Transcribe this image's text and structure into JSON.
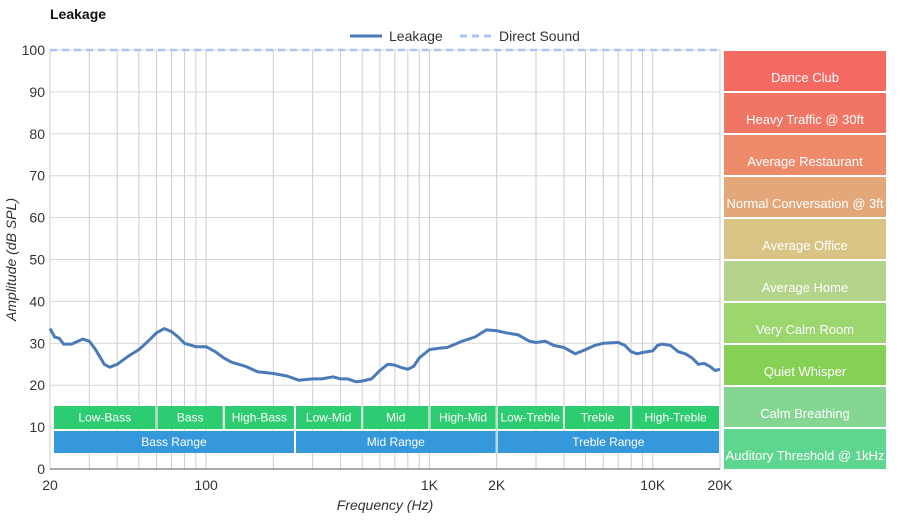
{
  "chart_data": {
    "type": "line",
    "title": "Leakage",
    "xlabel": "Frequency (Hz)",
    "ylabel": "Amplitude (dB SPL)",
    "x_scale": "log",
    "xlim": [
      20,
      20000
    ],
    "ylim": [
      0,
      100
    ],
    "grid": true,
    "legend_position": "top-center",
    "x_tick_labels": [
      {
        "value": 20,
        "label": "20"
      },
      {
        "value": 100,
        "label": "100"
      },
      {
        "value": 1000,
        "label": "1K"
      },
      {
        "value": 2000,
        "label": "2K"
      },
      {
        "value": 10000,
        "label": "10K"
      },
      {
        "value": 20000,
        "label": "20K"
      }
    ],
    "y_ticks": [
      0,
      10,
      20,
      30,
      40,
      50,
      60,
      70,
      80,
      90,
      100
    ],
    "series": [
      {
        "name": "Leakage",
        "color": "#4a7ab8",
        "style": "solid",
        "x": [
          20,
          21,
          22,
          23,
          25,
          28,
          30,
          32,
          35,
          37,
          40,
          45,
          50,
          55,
          60,
          65,
          70,
          75,
          80,
          90,
          100,
          110,
          120,
          130,
          150,
          170,
          200,
          230,
          260,
          300,
          330,
          370,
          400,
          430,
          470,
          500,
          550,
          600,
          650,
          700,
          750,
          800,
          850,
          900,
          1000,
          1100,
          1200,
          1400,
          1600,
          1800,
          2000,
          2200,
          2500,
          2800,
          3000,
          3300,
          3600,
          4000,
          4500,
          5000,
          5500,
          6000,
          7000,
          7500,
          8000,
          8500,
          9000,
          10000,
          10500,
          11000,
          12000,
          13000,
          14000,
          15000,
          16000,
          17000,
          18000,
          19000,
          20000
        ],
        "values": [
          33.5,
          31.5,
          31.2,
          29.8,
          29.8,
          31.0,
          30.5,
          28.5,
          25.0,
          24.3,
          25.0,
          27.0,
          28.5,
          30.5,
          32.5,
          33.5,
          32.8,
          31.5,
          30.0,
          29.2,
          29.2,
          28.0,
          26.5,
          25.5,
          24.5,
          23.2,
          22.8,
          22.2,
          21.2,
          21.5,
          21.5,
          22.0,
          21.5,
          21.5,
          20.8,
          21.0,
          21.5,
          23.5,
          25.0,
          24.8,
          24.2,
          23.8,
          24.5,
          26.5,
          28.5,
          28.8,
          29.0,
          30.5,
          31.5,
          33.2,
          33.0,
          32.5,
          32.0,
          30.5,
          30.2,
          30.5,
          29.5,
          29.0,
          27.5,
          28.5,
          29.5,
          30.0,
          30.2,
          29.5,
          28.0,
          27.5,
          27.8,
          28.2,
          29.5,
          29.8,
          29.5,
          28.0,
          27.5,
          26.5,
          25.0,
          25.2,
          24.5,
          23.5,
          23.8
        ]
      },
      {
        "name": "Direct Sound",
        "color": "#a9c4f5",
        "style": "dashed",
        "x": [
          20,
          20000
        ],
        "values": [
          100,
          100
        ]
      }
    ],
    "frequency_bands": [
      {
        "label": "Low-Bass",
        "from": 20,
        "to": 60,
        "row": 1
      },
      {
        "label": "Bass",
        "from": 60,
        "to": 120,
        "row": 1
      },
      {
        "label": "High-Bass",
        "from": 120,
        "to": 250,
        "row": 1
      },
      {
        "label": "Low-Mid",
        "from": 250,
        "to": 500,
        "row": 1
      },
      {
        "label": "Mid",
        "from": 500,
        "to": 1000,
        "row": 1
      },
      {
        "label": "High-Mid",
        "from": 1000,
        "to": 2000,
        "row": 1
      },
      {
        "label": "Low-Treble",
        "from": 2000,
        "to": 4000,
        "row": 1
      },
      {
        "label": "Treble",
        "from": 4000,
        "to": 8000,
        "row": 1
      },
      {
        "label": "High-Treble",
        "from": 8000,
        "to": 20000,
        "row": 1
      },
      {
        "label": "Bass Range",
        "from": 20,
        "to": 250,
        "row": 2
      },
      {
        "label": "Mid Range",
        "from": 250,
        "to": 2000,
        "row": 2
      },
      {
        "label": "Treble Range",
        "from": 2000,
        "to": 20000,
        "row": 2
      }
    ],
    "band_colors": {
      "row1": "#2ecc71",
      "row2": "#3498db"
    },
    "reference_levels": [
      {
        "label": "Dance Club",
        "color": "#f46a62"
      },
      {
        "label": "Heavy Traffic @ 30ft",
        "color": "#f07565"
      },
      {
        "label": "Average Restaurant",
        "color": "#ec8a6a"
      },
      {
        "label": "Normal Conversation @ 3ft",
        "color": "#e4a77a"
      },
      {
        "label": "Average Office",
        "color": "#d9c485"
      },
      {
        "label": "Average Home",
        "color": "#b4d48c"
      },
      {
        "label": "Very Calm Room",
        "color": "#9bd66f"
      },
      {
        "label": "Quiet Whisper",
        "color": "#86d155"
      },
      {
        "label": "Calm Breathing",
        "color": "#85d693"
      },
      {
        "label": "Auditory Threshold @ 1kHz",
        "color": "#5fd68f"
      }
    ]
  }
}
